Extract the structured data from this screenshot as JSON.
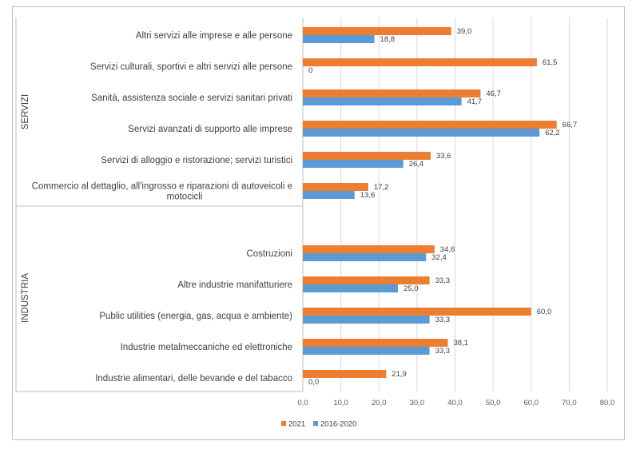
{
  "chart_data": {
    "type": "bar",
    "orientation": "horizontal",
    "groups": [
      {
        "name": "SERVIZI",
        "categories": [
          "Altri servizi alle imprese e alle persone",
          "Servizi culturali, sportivi e altri servizi alle persone",
          "Sanità, assistenza sociale e servizi sanitari privati",
          "Servizi avanzati di supporto alle imprese",
          "Servizi di alloggio e ristorazione; servizi turistici",
          "Commercio al dettaglio, all'ingrosso e riparazioni di autoveicoli e motocicli"
        ],
        "series": [
          {
            "name": "2021",
            "values": [
              39.0,
              61.5,
              46.7,
              66.7,
              33.6,
              17.2
            ],
            "labels": [
              "39,0",
              "61,5",
              "46,7",
              "66,7",
              "33,6",
              "17,2"
            ]
          },
          {
            "name": "2016-2020",
            "values": [
              18.8,
              0,
              41.7,
              62.2,
              26.4,
              13.6
            ],
            "labels": [
              "18,8",
              "0",
              "41,7",
              "62,2",
              "26,4",
              "13,6"
            ]
          }
        ]
      },
      {
        "name": "INDUSTRIA",
        "categories": [
          "Costruzioni",
          "Altre industrie manifatturiere",
          "Public utilities (energia, gas, acqua e ambiente)",
          "Industrie metalmeccaniche ed elettroniche",
          "Industrie alimentari, delle bevande e del tabacco"
        ],
        "series": [
          {
            "name": "2021",
            "values": [
              34.6,
              33.3,
              60.0,
              38.1,
              21.9
            ],
            "labels": [
              "34,6",
              "33,3",
              "60,0",
              "38,1",
              "21,9"
            ]
          },
          {
            "name": "2016-2020",
            "values": [
              32.4,
              25.0,
              33.3,
              33.3,
              0.0
            ],
            "labels": [
              "32,4",
              "25,0",
              "33,3",
              "33,3",
              "0,0"
            ]
          }
        ]
      }
    ],
    "xlim": [
      0,
      80
    ],
    "xticks": [
      0,
      10,
      20,
      30,
      40,
      50,
      60,
      70,
      80
    ],
    "xtick_labels": [
      "0,0",
      "10,0",
      "20,0",
      "30,0",
      "40,0",
      "50,0",
      "60,0",
      "70,0",
      "80,0"
    ],
    "grid": "vertical",
    "legend": {
      "placement": "bottom",
      "entries": [
        {
          "name": "2021",
          "color": "#ED7D31"
        },
        {
          "name": "2016-2020",
          "color": "#5B9BD5"
        }
      ]
    },
    "colors": {
      "2021": "#ED7D31",
      "2016-2020": "#5B9BD5"
    }
  }
}
